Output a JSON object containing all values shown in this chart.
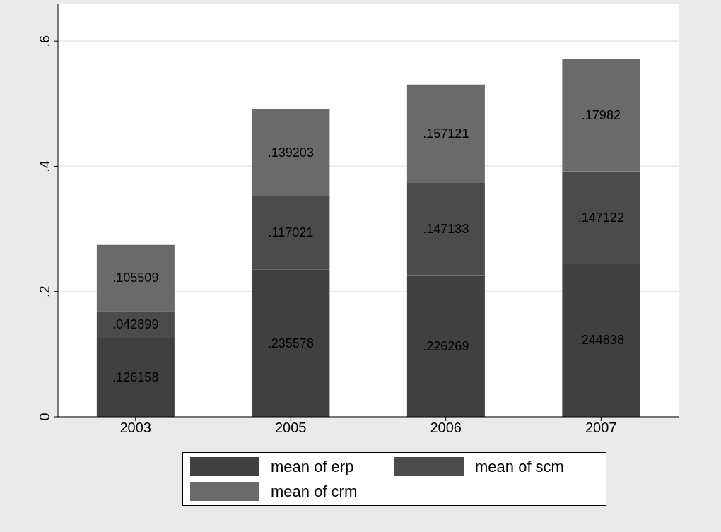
{
  "chart_data": {
    "type": "bar",
    "stacked": true,
    "categories": [
      "2003",
      "2005",
      "2006",
      "2007"
    ],
    "series": [
      {
        "name": "mean of erp",
        "color": "#404040",
        "values": [
          0.126158,
          0.235578,
          0.226269,
          0.244838
        ],
        "value_labels": [
          ".126158",
          ".235578",
          ".226269",
          ".244838"
        ]
      },
      {
        "name": "mean of scm",
        "color": "#4b4b4b",
        "values": [
          0.042899,
          0.117021,
          0.147133,
          0.147122
        ],
        "value_labels": [
          ".042899",
          ".117021",
          ".147133",
          ".147122"
        ]
      },
      {
        "name": "mean of crm",
        "color": "#6a6a6a",
        "values": [
          0.105509,
          0.139203,
          0.157121,
          0.17982
        ],
        "value_labels": [
          ".105509",
          ".139203",
          ".157121",
          ".17982"
        ]
      }
    ],
    "ylim": [
      0,
      0.66
    ],
    "yticks": [
      {
        "value": 0,
        "label": "0"
      },
      {
        "value": 0.2,
        "label": ".2"
      },
      {
        "value": 0.4,
        "label": ".4"
      },
      {
        "value": 0.6,
        "label": ".6"
      }
    ],
    "grid": "y",
    "legend": "bottom"
  }
}
